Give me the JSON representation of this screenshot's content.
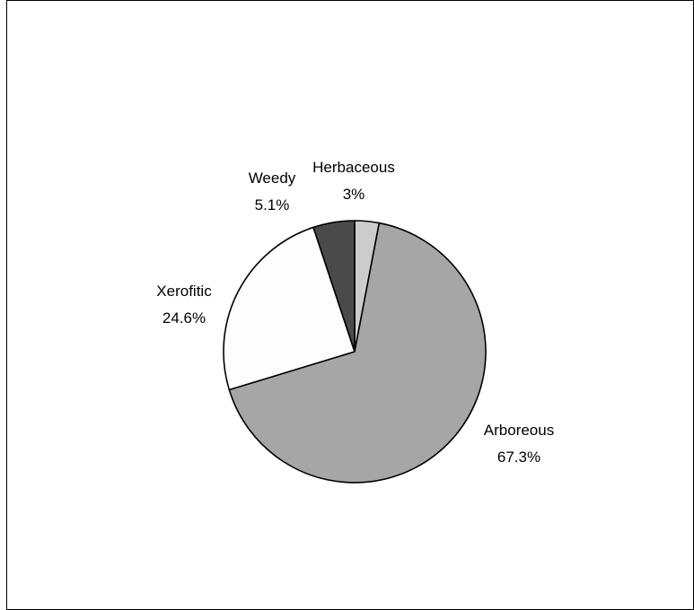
{
  "chart_data": {
    "type": "pie",
    "title": "",
    "slices": [
      {
        "name": "Herbaceous",
        "value": 3.0,
        "label": "3%",
        "color": "#cccccc"
      },
      {
        "name": "Arboreous",
        "value": 67.3,
        "label": "67.3%",
        "color": "#a6a6a6"
      },
      {
        "name": "Xerofitic",
        "value": 24.6,
        "label": "24.6%",
        "color": "#fdfdfd"
      },
      {
        "name": "Weedy",
        "value": 5.1,
        "label": "5.1%",
        "color": "#4a4a4a"
      }
    ],
    "start": "12 o'clock",
    "direction": "clockwise",
    "legend": "none",
    "data_labels": "outside, category name and percent"
  }
}
